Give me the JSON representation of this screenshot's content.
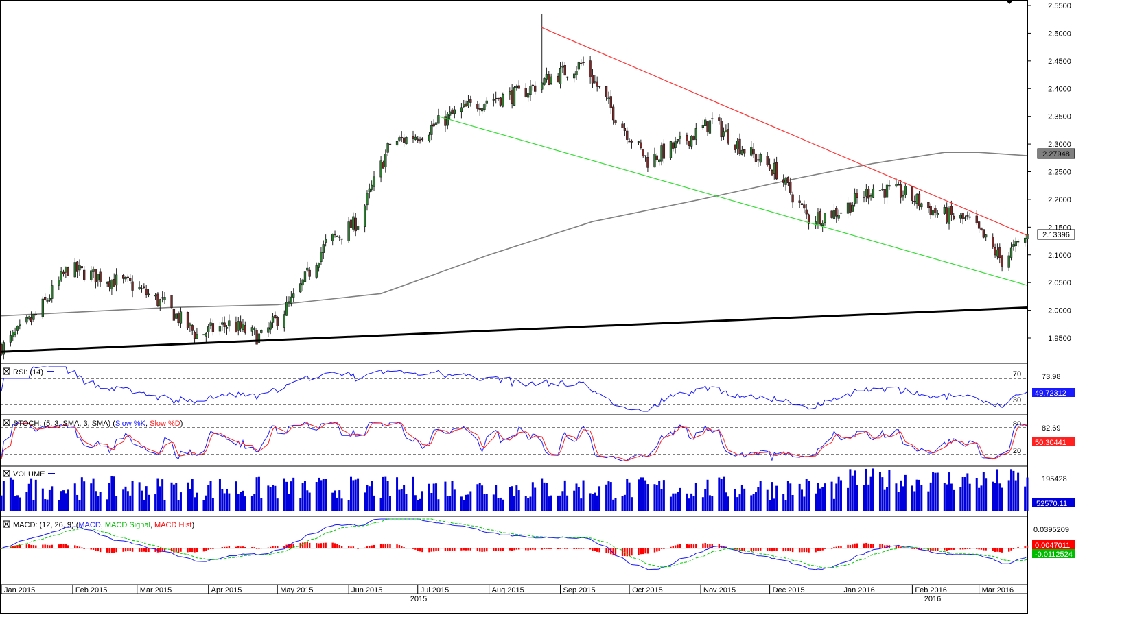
{
  "price_axis": {
    "ticks": [
      "2.5500",
      "2.5000",
      "2.4500",
      "2.4000",
      "2.3500",
      "2.3000",
      "2.2500",
      "2.2000",
      "2.1500",
      "2.1000",
      "2.0500",
      "2.0000",
      "1.9500"
    ],
    "tick_values": [
      2.55,
      2.5,
      2.45,
      2.4,
      2.35,
      2.3,
      2.25,
      2.2,
      2.15,
      2.1,
      2.05,
      2.0,
      1.95
    ],
    "sma_label": "2.27948",
    "last_price_label": "2.13396"
  },
  "rsi_panel": {
    "title": "RSI: (14)",
    "level_70": "70",
    "level_30": "30",
    "scale_label": "73.98",
    "value_label": "49.72312"
  },
  "stoch_panel": {
    "title": "STOCH: (5, 3, SMA, 3, SMA)",
    "k_name": "Slow %K",
    "d_name": "Slow %D",
    "level_80": "80",
    "level_20": "20",
    "scale_label": "82.69",
    "value_label": "50.30441"
  },
  "volume_panel": {
    "title": "VOLUME",
    "scale_label": "195428",
    "value_label": "52570.11"
  },
  "macd_panel": {
    "title": "MACD: (12, 26, 9)",
    "macd_name": "MACD",
    "signal_name": "MACD Signal",
    "hist_name": "MACD Hist",
    "scale_label": "0.0395209",
    "value_label": "0.0047011",
    "value_label_2": "-0.0112524"
  },
  "x_axis": {
    "months": [
      "Jan 2015",
      "Feb 2015",
      "Mar 2015",
      "Apr 2015",
      "May 2015",
      "Jun 2015",
      "Jul 2015",
      "Aug 2015",
      "Sep 2015",
      "Oct 2015",
      "Nov 2015",
      "Dec 2015",
      "Jan 2016",
      "Feb 2016",
      "Mar 2016"
    ],
    "years": [
      "2015",
      "2016"
    ]
  },
  "colors": {
    "up_candle": "#2e7d32",
    "down_candle": "#7b2a2a",
    "resistance_line": "#ff3333",
    "support_line": "#33dd33",
    "long_trendline": "#000000",
    "sma200": "#808080",
    "rsi": "#1a1aff",
    "stoch_k": "#1a1aff",
    "stoch_d": "#ff2020",
    "volume": "#0000dd",
    "macd": "#1a1aff",
    "macd_signal": "#00cc00",
    "macd_hist": "#ff0000"
  },
  "chart_data": {
    "type": "candlestick",
    "instrument_period": "daily",
    "x_range": [
      "2015-01-01",
      "2016-03-22"
    ],
    "ylim": [
      1.92,
      2.56
    ],
    "close_path": [
      {
        "date": "2015-01-02",
        "close": 1.935
      },
      {
        "date": "2015-01-16",
        "close": 1.99
      },
      {
        "date": "2015-01-30",
        "close": 2.075
      },
      {
        "date": "2015-02-13",
        "close": 2.06
      },
      {
        "date": "2015-02-27",
        "close": 2.045
      },
      {
        "date": "2015-03-13",
        "close": 2.01
      },
      {
        "date": "2015-03-27",
        "close": 1.955
      },
      {
        "date": "2015-04-10",
        "close": 1.975
      },
      {
        "date": "2015-04-24",
        "close": 1.95
      },
      {
        "date": "2015-05-08",
        "close": 2.02
      },
      {
        "date": "2015-05-22",
        "close": 2.12
      },
      {
        "date": "2015-06-05",
        "close": 2.16
      },
      {
        "date": "2015-06-19",
        "close": 2.3
      },
      {
        "date": "2015-07-03",
        "close": 2.32
      },
      {
        "date": "2015-07-17",
        "close": 2.355
      },
      {
        "date": "2015-07-31",
        "close": 2.38
      },
      {
        "date": "2015-08-14",
        "close": 2.39
      },
      {
        "date": "2015-08-28",
        "close": 2.42
      },
      {
        "date": "2015-09-11",
        "close": 2.445
      },
      {
        "date": "2015-09-25",
        "close": 2.35
      },
      {
        "date": "2015-10-09",
        "close": 2.27
      },
      {
        "date": "2015-10-23",
        "close": 2.3
      },
      {
        "date": "2015-11-06",
        "close": 2.34
      },
      {
        "date": "2015-11-20",
        "close": 2.29
      },
      {
        "date": "2015-12-04",
        "close": 2.25
      },
      {
        "date": "2015-12-18",
        "close": 2.165
      },
      {
        "date": "2016-01-01",
        "close": 2.18
      },
      {
        "date": "2016-01-15",
        "close": 2.22
      },
      {
        "date": "2016-01-29",
        "close": 2.21
      },
      {
        "date": "2016-02-12",
        "close": 2.175
      },
      {
        "date": "2016-02-26",
        "close": 2.16
      },
      {
        "date": "2016-03-11",
        "close": 2.09
      },
      {
        "date": "2016-03-22",
        "close": 2.134
      }
    ],
    "spike_high": {
      "date": "2015-08-24",
      "value": 2.535
    },
    "sma200": [
      {
        "date": "2015-01-01",
        "value": 1.99
      },
      {
        "date": "2015-03-15",
        "value": 2.005
      },
      {
        "date": "2015-05-01",
        "value": 2.01
      },
      {
        "date": "2015-06-15",
        "value": 2.03
      },
      {
        "date": "2015-08-01",
        "value": 2.1
      },
      {
        "date": "2015-09-15",
        "value": 2.16
      },
      {
        "date": "2015-11-01",
        "value": 2.2
      },
      {
        "date": "2015-12-15",
        "value": 2.24
      },
      {
        "date": "2016-01-15",
        "value": 2.265
      },
      {
        "date": "2016-02-15",
        "value": 2.285
      },
      {
        "date": "2016-03-01",
        "value": 2.285
      },
      {
        "date": "2016-03-22",
        "value": 2.279
      }
    ],
    "trendlines": [
      {
        "name": "resistance",
        "start": {
          "date": "2015-08-24",
          "value": 2.51
        },
        "end": {
          "date": "2016-03-22",
          "value": 2.135
        }
      },
      {
        "name": "support",
        "start": {
          "date": "2015-07-10",
          "value": 2.35
        },
        "end": {
          "date": "2016-03-22",
          "value": 2.045
        }
      },
      {
        "name": "long-term",
        "start": {
          "date": "2015-01-01",
          "value": 1.925
        },
        "end": {
          "date": "2016-03-22",
          "value": 2.005
        }
      }
    ],
    "rsi_last": 49.72,
    "stoch_last": 50.3,
    "volume_last": 52570.11,
    "macd_last": 0.0047011
  }
}
